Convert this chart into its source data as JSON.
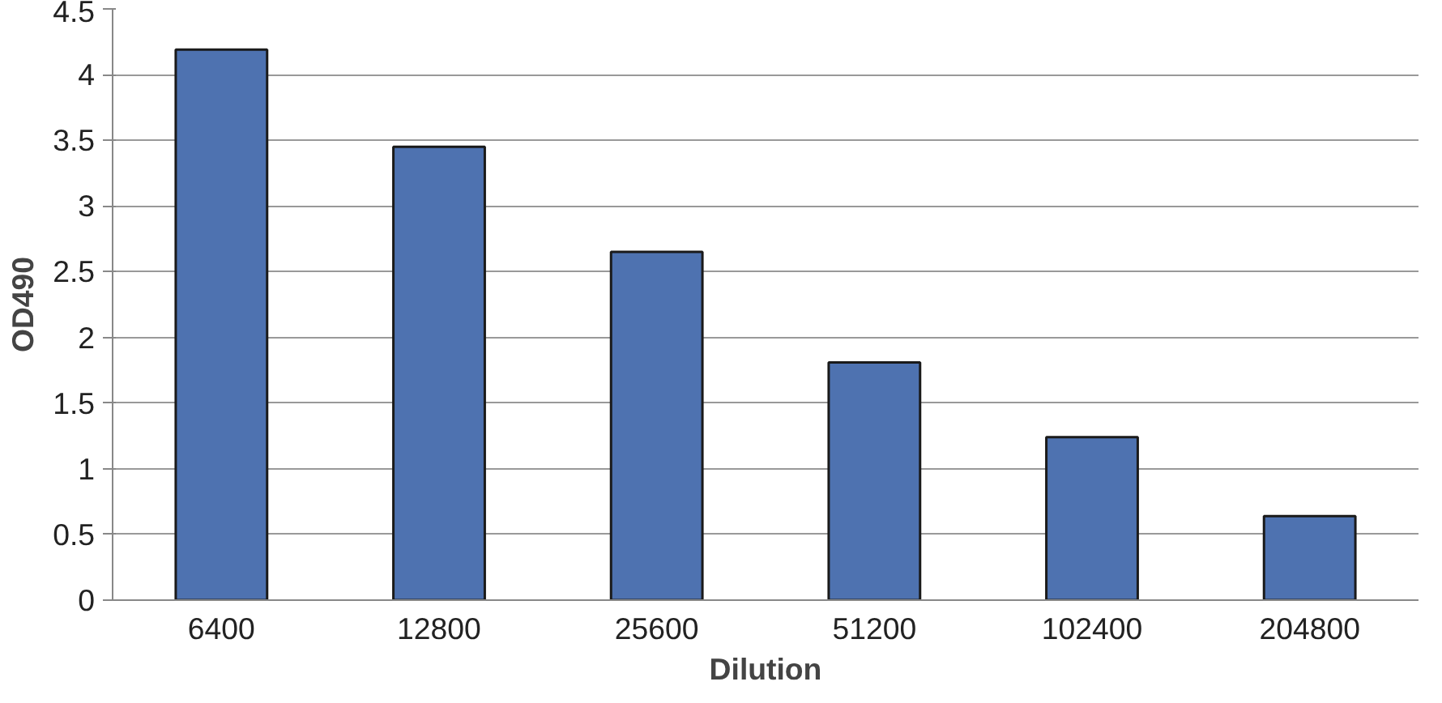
{
  "chart_data": {
    "type": "bar",
    "xlabel": "Dilution",
    "ylabel": "OD490",
    "categories": [
      "6400",
      "12800",
      "25600",
      "51200",
      "102400",
      "204800"
    ],
    "values": [
      4.19,
      3.45,
      2.65,
      1.81,
      1.24,
      0.64
    ],
    "color": "#4e72b0",
    "ylim": [
      0,
      4.5
    ],
    "yticks": [
      0,
      0.5,
      1,
      1.5,
      2,
      2.5,
      3,
      3.5,
      4,
      4.5
    ],
    "grid": "y"
  }
}
